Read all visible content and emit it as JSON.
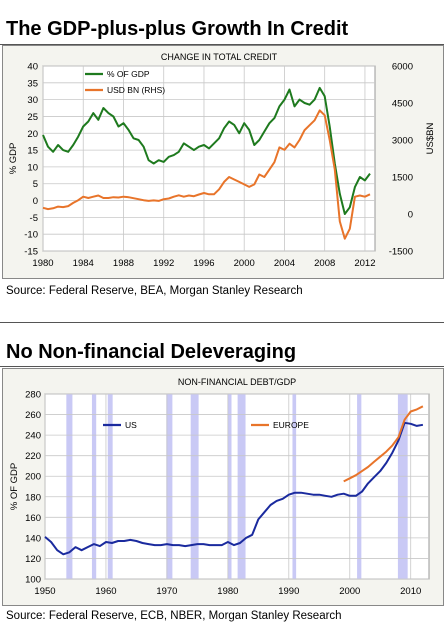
{
  "panels": [
    {
      "heading": "The GDP-plus-plus Growth In Credit",
      "source": "Source: Federal Reserve, BEA, Morgan Stanley Research"
    },
    {
      "heading": "No Non-financial Deleveraging",
      "source": "Source: Federal Reserve, ECB, NBER, Morgan Stanley Research"
    }
  ],
  "chart_data": [
    {
      "type": "line",
      "title": "CHANGE IN TOTAL CREDIT",
      "ylabel": "% GDP",
      "y2label": "US$BN",
      "xlim": [
        1980,
        2013
      ],
      "ylim": [
        -15,
        40
      ],
      "y2lim": [
        -1500,
        6000
      ],
      "xticks": [
        1980,
        1984,
        1988,
        1992,
        1996,
        2000,
        2004,
        2008,
        2012
      ],
      "yticks": [
        -15,
        -10,
        -5,
        0,
        5,
        10,
        15,
        20,
        25,
        30,
        35,
        40
      ],
      "y2ticks": [
        -1500,
        0,
        1500,
        3000,
        4500,
        6000
      ],
      "grid": true,
      "legend": "top-left",
      "series": [
        {
          "name": "% OF GDP",
          "axis": "left",
          "color": "#1e7a1e",
          "x": [
            1980,
            1980.5,
            1981,
            1981.5,
            1982,
            1982.5,
            1983,
            1983.5,
            1984,
            1984.5,
            1985,
            1985.5,
            1986,
            1986.5,
            1987,
            1987.5,
            1988,
            1988.5,
            1989,
            1989.5,
            1990,
            1990.5,
            1991,
            1991.5,
            1992,
            1992.5,
            1993,
            1993.5,
            1994,
            1994.5,
            1995,
            1995.5,
            1996,
            1996.5,
            1997,
            1997.5,
            1998,
            1998.5,
            1999,
            1999.5,
            2000,
            2000.5,
            2001,
            2001.5,
            2002,
            2002.5,
            2003,
            2003.5,
            2004,
            2004.5,
            2005,
            2005.5,
            2006,
            2006.5,
            2007,
            2007.5,
            2008,
            2008.5,
            2009,
            2009.5,
            2010,
            2010.5,
            2011,
            2011.5,
            2012,
            2012.5
          ],
          "values": [
            19.5,
            16,
            14.5,
            16.5,
            15,
            14.5,
            16.5,
            19,
            22,
            23.5,
            26,
            24,
            27.5,
            26,
            25,
            22,
            23,
            21,
            18.5,
            18,
            16,
            12,
            11,
            12,
            11.5,
            13,
            13.5,
            14.5,
            17,
            16,
            15,
            16,
            16.5,
            15.5,
            17,
            18.5,
            21.5,
            23.5,
            22.5,
            20,
            23,
            21,
            16.5,
            18,
            20.5,
            23,
            24.5,
            28,
            30,
            33,
            28,
            30,
            29,
            28.5,
            30,
            33.5,
            31,
            22,
            11,
            2,
            -4,
            -2,
            4,
            7,
            6,
            8
          ]
        },
        {
          "name": "USD BN (RHS)",
          "axis": "right",
          "color": "#e8742a",
          "x": [
            1980,
            1980.5,
            1981,
            1981.5,
            1982,
            1982.5,
            1983,
            1983.5,
            1984,
            1984.5,
            1985,
            1985.5,
            1986,
            1986.5,
            1987,
            1987.5,
            1988,
            1988.5,
            1989,
            1989.5,
            1990,
            1990.5,
            1991,
            1991.5,
            1992,
            1992.5,
            1993,
            1993.5,
            1994,
            1994.5,
            1995,
            1995.5,
            1996,
            1996.5,
            1997,
            1997.5,
            1998,
            1998.5,
            1999,
            1999.5,
            2000,
            2000.5,
            2001,
            2001.5,
            2002,
            2002.5,
            2003,
            2003.5,
            2004,
            2004.5,
            2005,
            2005.5,
            2006,
            2006.5,
            2007,
            2007.5,
            2008,
            2008.5,
            2009,
            2009.5,
            2010,
            2010.5,
            2011,
            2011.5,
            2012,
            2012.5
          ],
          "values": [
            250,
            200,
            230,
            300,
            280,
            320,
            450,
            560,
            700,
            650,
            700,
            750,
            650,
            650,
            680,
            670,
            700,
            680,
            640,
            600,
            560,
            530,
            550,
            530,
            600,
            630,
            700,
            760,
            700,
            750,
            720,
            790,
            850,
            800,
            800,
            1000,
            1300,
            1500,
            1400,
            1300,
            1200,
            1100,
            1200,
            1600,
            1500,
            1800,
            2100,
            2700,
            2600,
            2850,
            2700,
            3000,
            3400,
            3600,
            3800,
            4200,
            4000,
            3000,
            1800,
            -300,
            -1000,
            -600,
            700,
            750,
            700,
            800
          ]
        }
      ]
    },
    {
      "type": "line",
      "title": "NON-FINANCIAL DEBT/GDP",
      "ylabel": "% OF GDP",
      "xlim": [
        1950,
        2013
      ],
      "ylim": [
        100,
        280
      ],
      "xticks": [
        1950,
        1960,
        1970,
        1980,
        1990,
        2000,
        2010
      ],
      "yticks": [
        100,
        120,
        140,
        160,
        180,
        200,
        220,
        240,
        260,
        280
      ],
      "grid": true,
      "legend": "top",
      "shaded_periods": [
        [
          1953.5,
          1954.5
        ],
        [
          1957.7,
          1958.4
        ],
        [
          1960.3,
          1961.1
        ],
        [
          1969.9,
          1970.9
        ],
        [
          1973.9,
          1975.2
        ],
        [
          1980.0,
          1980.6
        ],
        [
          1981.6,
          1982.9
        ],
        [
          1990.6,
          1991.2
        ],
        [
          2001.2,
          2001.9
        ],
        [
          2007.9,
          2009.5
        ]
      ],
      "series": [
        {
          "name": "US",
          "color": "#1a2a9e",
          "x": [
            1950,
            1951,
            1952,
            1953,
            1954,
            1955,
            1956,
            1957,
            1958,
            1959,
            1960,
            1961,
            1962,
            1963,
            1964,
            1965,
            1966,
            1967,
            1968,
            1969,
            1970,
            1971,
            1972,
            1973,
            1974,
            1975,
            1976,
            1977,
            1978,
            1979,
            1980,
            1981,
            1982,
            1983,
            1984,
            1985,
            1986,
            1987,
            1988,
            1989,
            1990,
            1991,
            1992,
            1993,
            1994,
            1995,
            1996,
            1997,
            1998,
            1999,
            2000,
            2001,
            2002,
            2003,
            2004,
            2005,
            2006,
            2007,
            2008,
            2009,
            2010,
            2011,
            2012
          ],
          "values": [
            141,
            136,
            128,
            124,
            126,
            131,
            128,
            131,
            134,
            132,
            136,
            135,
            137,
            137,
            138,
            137,
            135,
            134,
            133,
            133,
            134,
            133,
            133,
            132,
            133,
            134,
            134,
            133,
            133,
            133,
            136,
            133,
            135,
            140,
            143,
            158,
            165,
            172,
            176,
            178,
            182,
            184,
            184,
            183,
            182,
            182,
            181,
            180,
            182,
            183,
            181,
            181,
            185,
            193,
            199,
            205,
            213,
            223,
            235,
            252,
            251,
            249,
            250
          ]
        },
        {
          "name": "EUROPE",
          "color": "#e8742a",
          "x": [
            1999,
            2000,
            2001,
            2002,
            2003,
            2004,
            2005,
            2006,
            2007,
            2008,
            2009,
            2010,
            2011,
            2012
          ],
          "values": [
            195,
            198,
            201,
            205,
            209,
            214,
            219,
            224,
            230,
            238,
            255,
            263,
            265,
            268
          ]
        }
      ]
    }
  ]
}
